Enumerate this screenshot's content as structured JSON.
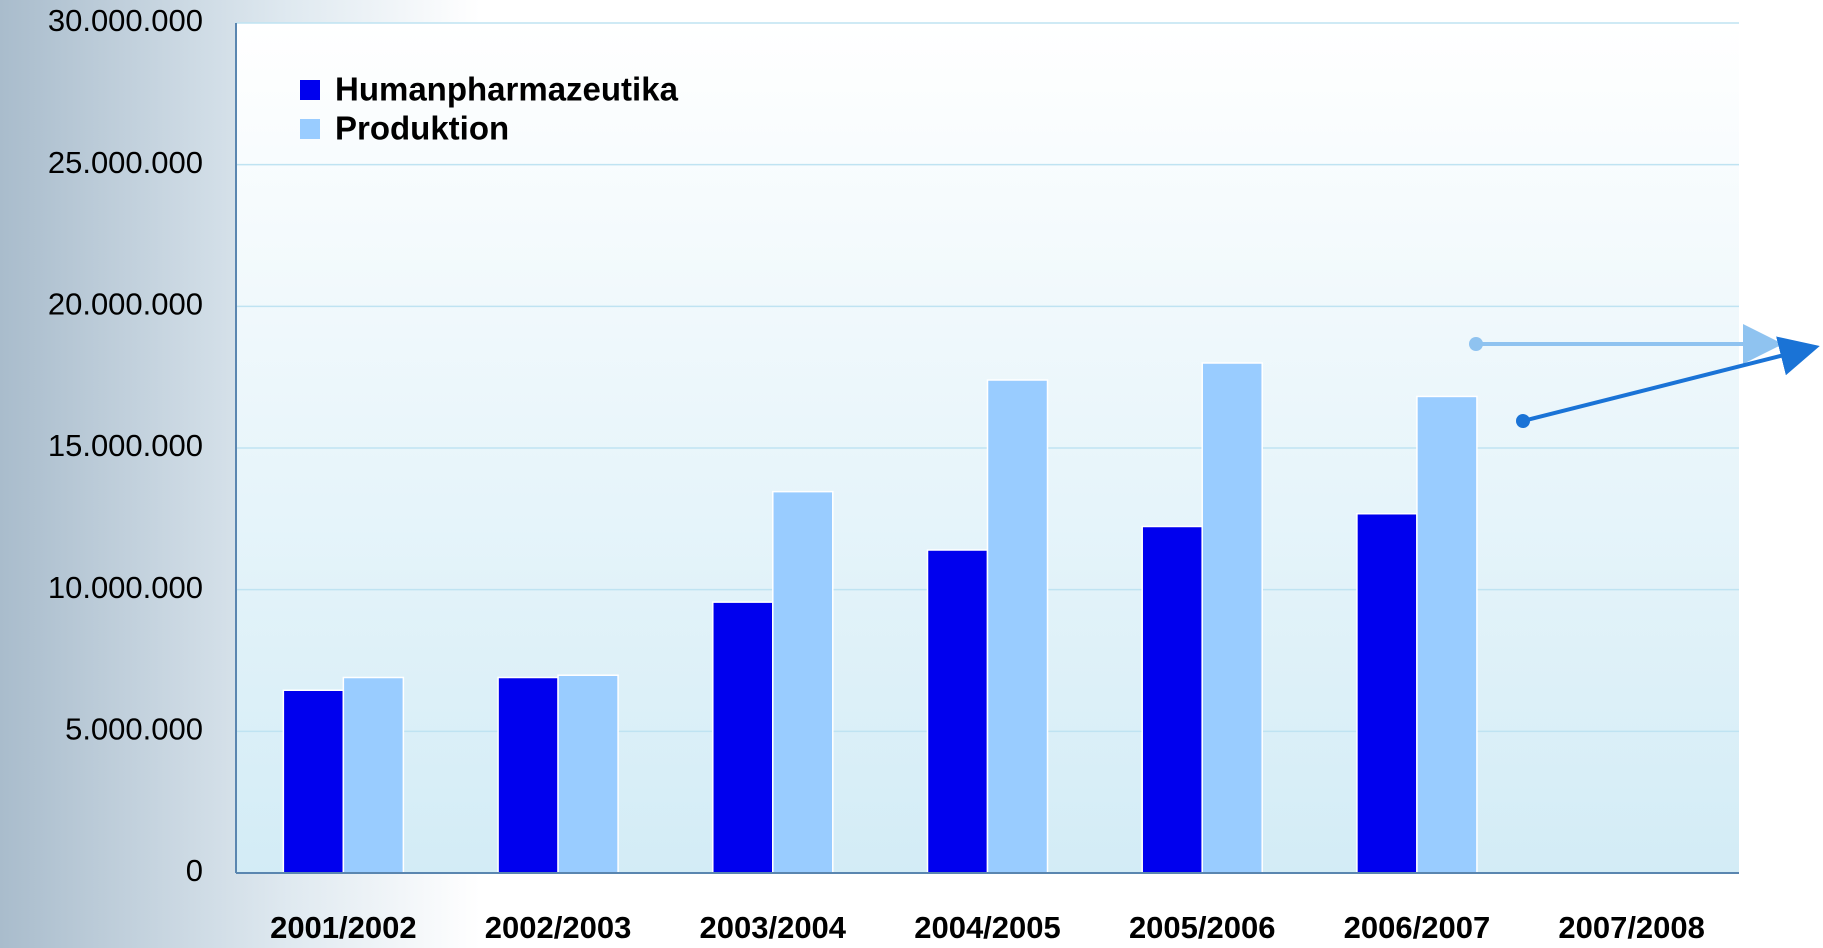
{
  "chart_data": {
    "type": "bar",
    "categories": [
      "2001/2002",
      "2002/2003",
      "2003/2004",
      "2004/2005",
      "2005/2006",
      "2006/2007",
      "2007/2008"
    ],
    "series": [
      {
        "name": "Humanpharmazeutika",
        "color": "#0000ee",
        "values": [
          6450000,
          6900000,
          9560000,
          11400000,
          12230000,
          12680000,
          null
        ]
      },
      {
        "name": "Produktion",
        "color": "#99ccff",
        "values": [
          6900000,
          6980000,
          13460000,
          17400000,
          18000000,
          16820000,
          null
        ]
      }
    ],
    "ylim": [
      0,
      30000000
    ],
    "yticks": [
      0,
      {
        "value": 5000000,
        "label": "5.000.000"
      },
      {
        "value": 10000000,
        "label": "10.000.000"
      },
      {
        "value": 15000000,
        "label": "15.000.000"
      },
      {
        "value": 20000000,
        "label": "20.000.000"
      },
      {
        "value": 25000000,
        "label": "25.000.000"
      },
      {
        "value": 30000000,
        "label": "30.000.000"
      }
    ],
    "grid": true,
    "legend": "top-left"
  }
}
